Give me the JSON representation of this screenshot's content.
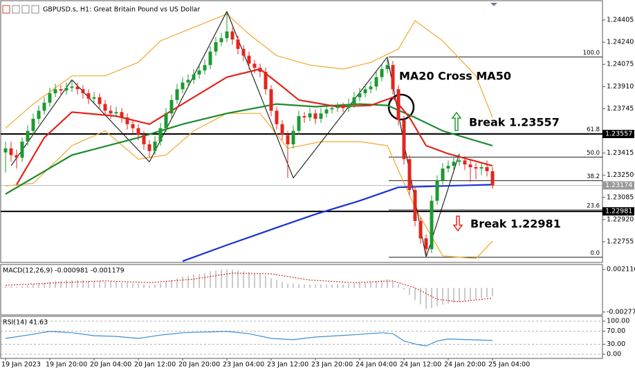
{
  "chart_data": [
    {
      "type": "candlestick",
      "title": "GBPUSD.s, H1:  Great Britain Pound vs US Dollar",
      "categories": [
        "19 Jan 2023",
        null,
        null,
        null,
        null,
        null,
        null,
        null,
        "19 Jan 20:00",
        null,
        null,
        null,
        null,
        null,
        null,
        null,
        "20 Jan 04:00",
        null,
        null,
        null,
        null,
        null,
        null,
        null,
        "20 Jan 12:00",
        null,
        null,
        null,
        null,
        null,
        null,
        null,
        "20 Jan 20:00",
        null,
        null,
        null,
        null,
        null,
        null,
        null,
        "23 Jan 04:00",
        null,
        null,
        null,
        null,
        null,
        null,
        null,
        "23 Jan 12:00",
        null,
        null,
        null,
        null,
        null,
        null,
        null,
        "23 Jan 20:00",
        null,
        null,
        null,
        null,
        null,
        null,
        null,
        "24 Jan 04:00",
        null,
        null,
        null,
        null,
        null,
        null,
        null,
        "24 Jan 12:00",
        null,
        null,
        null,
        null,
        null,
        null,
        null,
        "24 Jan 20:00",
        null,
        null,
        null,
        null,
        null,
        null,
        null,
        "25 Jan 04:00"
      ],
      "ohlc": [
        [
          1.2342,
          1.235,
          1.2327,
          1.2345
        ],
        [
          1.2345,
          1.235,
          1.2335,
          1.234
        ],
        [
          1.234,
          1.2344,
          1.233,
          1.2338
        ],
        [
          1.2338,
          1.2353,
          1.2335,
          1.235
        ],
        [
          1.235,
          1.2362,
          1.2347,
          1.2358
        ],
        [
          1.2358,
          1.2371,
          1.2355,
          1.2367
        ],
        [
          1.2367,
          1.2377,
          1.2363,
          1.2373
        ],
        [
          1.2373,
          1.2383,
          1.237,
          1.2379
        ],
        [
          1.2379,
          1.239,
          1.2376,
          1.2386
        ],
        [
          1.2386,
          1.2393,
          1.2383,
          1.2389
        ],
        [
          1.2389,
          1.2392,
          1.2384,
          1.2388
        ],
        [
          1.2388,
          1.2394,
          1.2385,
          1.239
        ],
        [
          1.239,
          1.2396,
          1.2387,
          1.2391
        ],
        [
          1.2391,
          1.2394,
          1.2385,
          1.2389
        ],
        [
          1.2389,
          1.2392,
          1.2382,
          1.2386
        ],
        [
          1.2386,
          1.2389,
          1.2378,
          1.2382
        ],
        [
          1.2382,
          1.2387,
          1.2379,
          1.2383
        ],
        [
          1.2383,
          1.2386,
          1.2374,
          1.2378
        ],
        [
          1.2378,
          1.2381,
          1.2369,
          1.2373
        ],
        [
          1.2373,
          1.2377,
          1.2367,
          1.2371
        ],
        [
          1.2371,
          1.2376,
          1.2368,
          1.2372
        ],
        [
          1.2372,
          1.2375,
          1.2364,
          1.2368
        ],
        [
          1.2368,
          1.2371,
          1.2359,
          1.2363
        ],
        [
          1.2363,
          1.2366,
          1.2356,
          1.236
        ],
        [
          1.236,
          1.2363,
          1.2351,
          1.2355
        ],
        [
          1.2355,
          1.2358,
          1.2344,
          1.2348
        ],
        [
          1.2348,
          1.2351,
          1.2338,
          1.2343
        ],
        [
          1.2343,
          1.2354,
          1.234,
          1.235
        ],
        [
          1.235,
          1.2364,
          1.2347,
          1.236
        ],
        [
          1.236,
          1.2375,
          1.2357,
          1.2371
        ],
        [
          1.2371,
          1.2385,
          1.2368,
          1.2381
        ],
        [
          1.2381,
          1.2393,
          1.2378,
          1.2389
        ],
        [
          1.2389,
          1.2398,
          1.2386,
          1.2394
        ],
        [
          1.2394,
          1.24,
          1.239,
          1.2396
        ],
        [
          1.2396,
          1.2404,
          1.2393,
          1.24
        ],
        [
          1.24,
          1.2407,
          1.2397,
          1.2403
        ],
        [
          1.2403,
          1.2411,
          1.24,
          1.2407
        ],
        [
          1.2407,
          1.2421,
          1.2404,
          1.2417
        ],
        [
          1.2417,
          1.2428,
          1.2414,
          1.2424
        ],
        [
          1.2424,
          1.2431,
          1.2421,
          1.2427
        ],
        [
          1.2427,
          1.2447,
          1.2424,
          1.2432
        ],
        [
          1.2432,
          1.2435,
          1.2422,
          1.2426
        ],
        [
          1.2426,
          1.2429,
          1.2415,
          1.2419
        ],
        [
          1.2419,
          1.2422,
          1.241,
          1.2414
        ],
        [
          1.2414,
          1.2417,
          1.2404,
          1.2408
        ],
        [
          1.2408,
          1.2411,
          1.2401,
          1.2405
        ],
        [
          1.2405,
          1.2408,
          1.2398,
          1.2402
        ],
        [
          1.2402,
          1.2405,
          1.2385,
          1.2389
        ],
        [
          1.2389,
          1.2392,
          1.2369,
          1.2373
        ],
        [
          1.2373,
          1.2376,
          1.2359,
          1.2363
        ],
        [
          1.2363,
          1.2366,
          1.2351,
          1.2355
        ],
        [
          1.2355,
          1.2358,
          1.2323,
          1.2348
        ],
        [
          1.2348,
          1.2362,
          1.2345,
          1.2358
        ],
        [
          1.2358,
          1.2373,
          1.2355,
          1.2369
        ],
        [
          1.2369,
          1.2372,
          1.2364,
          1.2368
        ],
        [
          1.2368,
          1.2375,
          1.2365,
          1.2371
        ],
        [
          1.2371,
          1.2374,
          1.2363,
          1.2367
        ],
        [
          1.2367,
          1.2375,
          1.2364,
          1.2371
        ],
        [
          1.2371,
          1.2378,
          1.2368,
          1.2374
        ],
        [
          1.2374,
          1.2378,
          1.2371,
          1.2375
        ],
        [
          1.2375,
          1.2379,
          1.2372,
          1.2376
        ],
        [
          1.2376,
          1.2379,
          1.2372,
          1.2375
        ],
        [
          1.2375,
          1.2382,
          1.2372,
          1.2378
        ],
        [
          1.2378,
          1.2387,
          1.2375,
          1.2383
        ],
        [
          1.2383,
          1.239,
          1.238,
          1.2386
        ],
        [
          1.2386,
          1.2393,
          1.2383,
          1.2389
        ],
        [
          1.2389,
          1.2395,
          1.2386,
          1.2391
        ],
        [
          1.2391,
          1.2402,
          1.2388,
          1.2398
        ],
        [
          1.2398,
          1.2408,
          1.2395,
          1.2404
        ],
        [
          1.2404,
          1.2413,
          1.2401,
          1.2407
        ],
        [
          1.2407,
          1.241,
          1.2385,
          1.2389
        ],
        [
          1.2389,
          1.2392,
          1.2362,
          1.2366
        ],
        [
          1.2366,
          1.2369,
          1.2333,
          1.2337
        ],
        [
          1.2337,
          1.234,
          1.231,
          1.2314
        ],
        [
          1.2314,
          1.2317,
          1.2287,
          1.2291
        ],
        [
          1.2291,
          1.2294,
          1.2274,
          1.2278
        ],
        [
          1.2278,
          1.2281,
          1.2264,
          1.227
        ],
        [
          1.227,
          1.231,
          1.2267,
          1.2306
        ],
        [
          1.2306,
          1.2325,
          1.2303,
          1.2321
        ],
        [
          1.2321,
          1.2334,
          1.2318,
          1.233
        ],
        [
          1.233,
          1.2336,
          1.2327,
          1.2332
        ],
        [
          1.2332,
          1.2339,
          1.2329,
          1.2335
        ],
        [
          1.2335,
          1.234,
          1.2332,
          1.2336
        ],
        [
          1.2336,
          1.2339,
          1.2329,
          1.2333
        ],
        [
          1.2333,
          1.2336,
          1.232,
          1.2331
        ],
        [
          1.2331,
          1.2334,
          1.2322,
          1.233
        ],
        [
          1.233,
          1.2334,
          1.2325,
          1.2331
        ],
        [
          1.2331,
          1.2336,
          1.2324,
          1.2328
        ],
        [
          1.2328,
          1.2331,
          1.2315,
          1.23174
        ]
      ],
      "up_color": "#1c9a30",
      "down_color": "#e3261c",
      "ylim": [
        1.22601,
        1.24513
      ],
      "yticks": [
        1.22755,
        {
          "value": 1.2292,
          "label": "1.22920"
        },
        1.23085,
        {
          "value": 1.2325,
          "label": "1.23250"
        },
        1.23415,
        1.23745,
        {
          "value": 1.2391,
          "label": "1.23910"
        },
        1.24075,
        {
          "value": 1.2424,
          "label": "1.24240"
        },
        1.24405
      ],
      "series": [
        {
          "color": "#f4a72a",
          "x": [
            0,
            5,
            12,
            18,
            24,
            28,
            34,
            40,
            44,
            49,
            55,
            61,
            66,
            71,
            74,
            79,
            85,
            88
          ],
          "values": [
            1.236,
            1.2378,
            1.2399,
            1.2399,
            1.2409,
            1.2425,
            1.2435,
            1.2445,
            1.243,
            1.2414,
            1.2407,
            1.2404,
            1.2409,
            1.2419,
            1.244,
            1.2425,
            1.2399,
            1.2368
          ]
        },
        {
          "color": "#f4a72a",
          "x": [
            0,
            5,
            12,
            18,
            24,
            29,
            34,
            40,
            46,
            51,
            57,
            64,
            69,
            74,
            79,
            85,
            88
          ],
          "values": [
            1.2317,
            1.2319,
            1.2347,
            1.2358,
            1.2337,
            1.234,
            1.2358,
            1.2371,
            1.2371,
            1.2345,
            1.235,
            1.235,
            1.2347,
            1.2301,
            1.2265,
            1.2263,
            1.2276
          ]
        },
        {
          "color": "#000000",
          "x": [
            1,
            12,
            26,
            40,
            52,
            69,
            76,
            82
          ],
          "values": [
            1.2332,
            1.2396,
            1.2335,
            1.2447,
            1.2323,
            1.2413,
            1.2264,
            1.2341
          ]
        },
        {
          "color": "#1a2fd6",
          "x": [
            32,
            40,
            49,
            56,
            64,
            71,
            79,
            88
          ],
          "values": [
            1.2261,
            1.2273,
            1.2286,
            1.2296,
            1.2306,
            1.2316,
            1.2317,
            1.2318
          ]
        },
        {
          "color": "#1a8a2a",
          "x": [
            0,
            12,
            24,
            32,
            40,
            49,
            56,
            64,
            69,
            74,
            79,
            88
          ],
          "values": [
            1.2311,
            1.234,
            1.2353,
            1.2363,
            1.2371,
            1.2378,
            1.2376,
            1.2378,
            1.2377,
            1.2368,
            1.2358,
            1.2347
          ]
        },
        {
          "color": "#e3231b",
          "x": [
            2,
            7,
            12,
            20,
            26,
            32,
            40,
            46,
            50,
            53,
            60,
            66,
            70,
            73,
            76,
            80,
            88
          ],
          "values": [
            1.2318,
            1.2353,
            1.2372,
            1.2369,
            1.2363,
            1.2378,
            1.2398,
            1.2404,
            1.2391,
            1.2381,
            1.2376,
            1.2377,
            1.2383,
            1.2368,
            1.2347,
            1.2341,
            1.2332
          ]
        }
      ],
      "hlines": [
        1.23557,
        1.22981
      ],
      "fib": {
        "from": 1.2264,
        "to": 1.2413,
        "levels": [
          {
            "value": 100,
            "label": "100.0"
          },
          61.8,
          {
            "value": 50,
            "label": "50.0"
          },
          38.2,
          23.6,
          {
            "value": 0,
            "label": "0.0"
          }
        ]
      },
      "annotations": [
        "MA20 Cross MA50",
        "Break 1.23557",
        "Break 1.22981"
      ]
    },
    {
      "type": "histogram",
      "title": "MACD(12,26,9) -0.000981 -0.001179",
      "color": "#b8b8b8",
      "values": [
        0.0002,
        0.0002,
        0.0001,
        0.0002,
        0.0003,
        0.0004,
        0.0005,
        0.0006,
        0.0007,
        0.0008,
        0.0008,
        0.0009,
        0.0009,
        0.0009,
        0.0009,
        0.0008,
        0.0008,
        0.0008,
        0.0007,
        0.0007,
        0.0007,
        0.0006,
        0.0006,
        0.0005,
        0.0005,
        0.0004,
        0.0003,
        0.0004,
        0.0005,
        0.0007,
        0.0009,
        0.0011,
        0.0013,
        0.0014,
        0.0015,
        0.0016,
        0.0017,
        0.0019,
        0.002,
        0.0021,
        0.0021,
        0.0021,
        0.002,
        0.0019,
        0.0018,
        0.0017,
        0.0016,
        0.0014,
        0.0011,
        0.0009,
        0.0007,
        0.0005,
        0.0005,
        0.0004,
        0.0004,
        0.0004,
        0.0004,
        0.0004,
        0.0004,
        0.0004,
        0.0004,
        0.0004,
        0.0005,
        0.0005,
        0.0006,
        0.0006,
        0.0007,
        0.0008,
        0.0009,
        0.001,
        0.0008,
        0.0004,
        -0.0002,
        -0.0008,
        -0.0014,
        -0.0019,
        -0.0024,
        -0.0023,
        -0.0021,
        -0.0019,
        -0.0018,
        -0.0017,
        -0.0016,
        -0.0015,
        -0.0014,
        -0.0013,
        -0.0012,
        -0.0011,
        -0.000981
      ],
      "series": [
        {
          "color": "#d9261c",
          "x": [
            0,
            10,
            18,
            26,
            34,
            41,
            48,
            55,
            63,
            70,
            74,
            78,
            82,
            88
          ],
          "values": [
            0.0003,
            0.0006,
            0.0008,
            0.0006,
            0.001,
            0.0017,
            0.0016,
            0.0009,
            0.0006,
            0.0008,
            0.0,
            -0.0013,
            -0.0016,
            -0.001179
          ]
        }
      ],
      "ylim": [
        -0.0031,
        0.0026
      ],
      "yticks": [
        0.002116,
        {
          "value": -0.00277,
          "label": "-0.002770"
        }
      ]
    },
    {
      "type": "line",
      "title": "RSI(14) 41.63",
      "series": [
        {
          "color": "#3a8fd6",
          "x": [
            0,
            4,
            8,
            12,
            16,
            20,
            24,
            28,
            32,
            36,
            40,
            44,
            48,
            52,
            56,
            60,
            64,
            68,
            70,
            72,
            74,
            76,
            78,
            80,
            84,
            88
          ],
          "values": [
            48,
            58,
            69,
            65,
            56,
            54,
            48,
            58,
            65,
            67,
            69,
            62,
            48,
            44,
            52,
            56,
            60,
            65,
            62,
            40,
            31,
            25,
            40,
            46,
            44,
            41.63
          ]
        }
      ],
      "ylim": [
        -12.5,
        112.5
      ],
      "yticks": [
        {
          "value": 100,
          "label": "100.00"
        },
        {
          "value": 70,
          "label": "70.00"
        },
        {
          "value": 30,
          "label": "30.00"
        },
        {
          "value": 0,
          "label": "0.00"
        }
      ],
      "grid": true
    }
  ]
}
